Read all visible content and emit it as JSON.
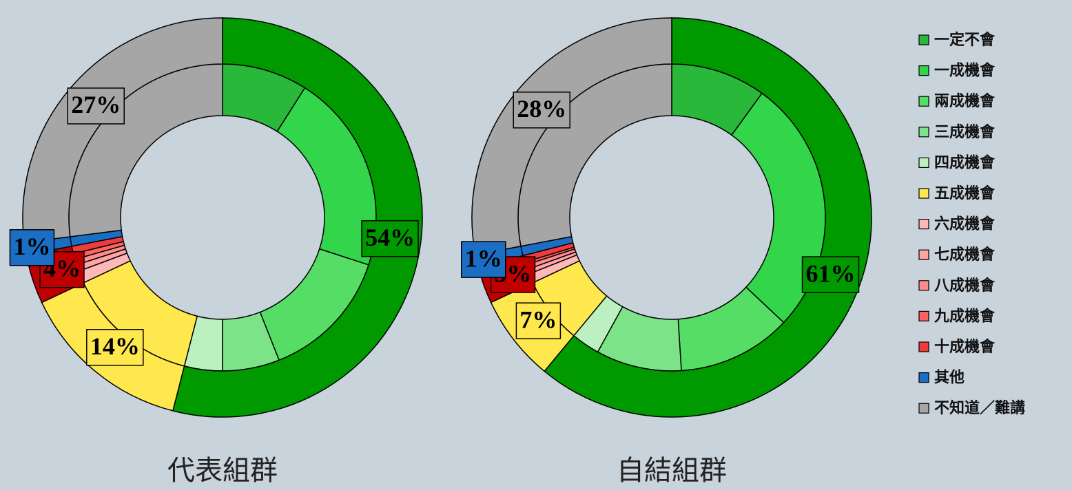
{
  "chart_data": {
    "type": "nested-donut",
    "legend_position": "right",
    "categories": [
      "一定不會",
      "一成機會",
      "兩成機會",
      "三成機會",
      "四成機會",
      "五成機會",
      "六成機會",
      "七成機會",
      "八成機會",
      "九成機會",
      "十成機會",
      "其他",
      "不知道／難講"
    ],
    "colors": [
      "#2ab83a",
      "#33d64a",
      "#55dd66",
      "#7de388",
      "#bdf0c0",
      "#ffe84d",
      "#ffb8b8",
      "#ffa3a3",
      "#ff8c8c",
      "#ff6262",
      "#ee3b3b",
      "#1a6fc4",
      "#a6a6a6"
    ],
    "outer_colors": [
      "#009900",
      "#ffe84d",
      "#c00000",
      "#1a6fc4",
      "#a6a6a6"
    ],
    "series": [
      {
        "name": "代表組群",
        "values": [
          9,
          21,
          14,
          6,
          4,
          14,
          1.3,
          0.7,
          0.6,
          0.6,
          0.8,
          1,
          27
        ],
        "outer_values": [
          54,
          14,
          4,
          1,
          27
        ],
        "outer_value_labels": [
          "54%",
          "14%",
          "4%",
          "1%",
          "27%"
        ]
      },
      {
        "name": "自結組群",
        "values": [
          10,
          27,
          12,
          9,
          3,
          7,
          1,
          0.5,
          0.5,
          0.3,
          0.7,
          1,
          28
        ],
        "outer_values": [
          61,
          7,
          3,
          1,
          28
        ],
        "outer_value_labels": [
          "61%",
          "7%",
          "3%",
          "1%",
          "28%"
        ]
      }
    ]
  }
}
